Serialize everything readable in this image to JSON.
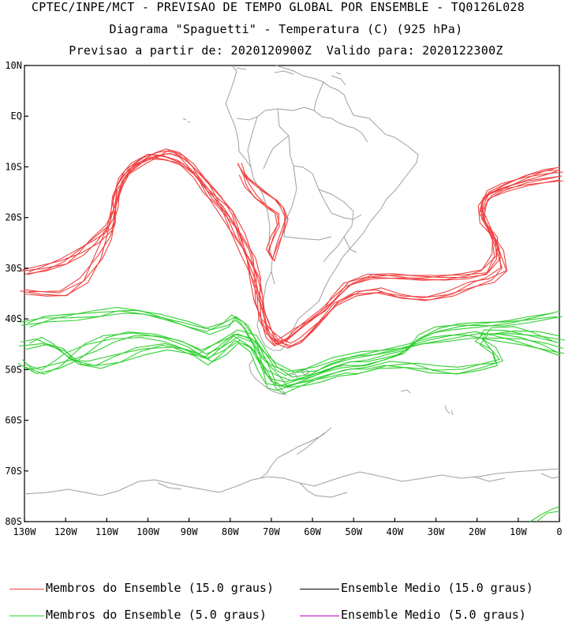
{
  "title": {
    "line1": "CPTEC/INPE/MCT - PREVISAO DE TEMPO GLOBAL POR ENSEMBLE - TQ0126L028",
    "line2": "Diagrama \"Spaguetti\" - Temperatura (C) (925 hPa)",
    "line3": "Previsao a partir de: 2020120900Z  Valido para: 2020122300Z"
  },
  "axes": {
    "lat_labels": [
      "10N",
      "EQ",
      "10S",
      "20S",
      "30S",
      "40S",
      "50S",
      "60S",
      "70S",
      "80S"
    ],
    "lon_labels": [
      "130W",
      "120W",
      "110W",
      "100W",
      "90W",
      "80W",
      "70W",
      "60W",
      "50W",
      "40W",
      "30W",
      "20W",
      "10W",
      "0"
    ],
    "lat_range": [
      -80,
      10
    ],
    "lon_range": [
      -130,
      0
    ]
  },
  "legend": [
    {
      "label": "Membros do Ensemble (15.0 graus)",
      "color": "#f04040"
    },
    {
      "label": "Ensemble Medio (15.0 graus)",
      "color": "#000000"
    },
    {
      "label": "Membros do Ensemble (5.0 graus)",
      "color": "#30d030"
    },
    {
      "label": "Ensemble Medio (5.0 graus)",
      "color": "#c000c0"
    }
  ],
  "colors": {
    "coast": "#a0a0a0",
    "red_members": "#f04040",
    "green_members": "#30d030"
  }
}
